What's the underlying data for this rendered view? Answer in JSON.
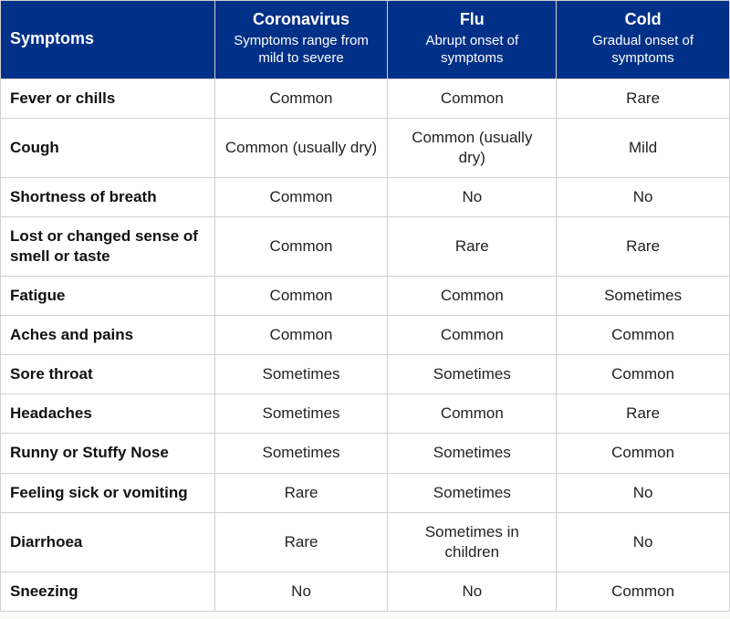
{
  "header": {
    "symptomsLabel": "Symptoms",
    "cols": [
      {
        "title": "Coronavirus",
        "sub": "Symptoms range from mild to severe"
      },
      {
        "title": "Flu",
        "sub": "Abrupt onset of symptoms"
      },
      {
        "title": "Cold",
        "sub": "Gradual onset of symptoms"
      }
    ]
  },
  "rows": [
    {
      "s": "Fever or chills",
      "cv": "Common",
      "flu": "Common",
      "cold": "Rare"
    },
    {
      "s": "Cough",
      "cv": "Common (usually dry)",
      "flu": "Common (usually dry)",
      "cold": "Mild"
    },
    {
      "s": "Shortness of breath",
      "cv": "Common",
      "flu": "No",
      "cold": "No"
    },
    {
      "s": "Lost or changed sense of smell or taste",
      "cv": "Common",
      "flu": "Rare",
      "cold": "Rare"
    },
    {
      "s": "Fatigue",
      "cv": "Common",
      "flu": "Common",
      "cold": "Sometimes"
    },
    {
      "s": "Aches and pains",
      "cv": "Common",
      "flu": "Common",
      "cold": "Common"
    },
    {
      "s": "Sore throat",
      "cv": "Sometimes",
      "flu": "Sometimes",
      "cold": "Common"
    },
    {
      "s": "Headaches",
      "cv": "Sometimes",
      "flu": "Common",
      "cold": "Rare"
    },
    {
      "s": "Runny or Stuffy Nose",
      "cv": "Sometimes",
      "flu": "Sometimes",
      "cold": "Common"
    },
    {
      "s": "Feeling sick or vomiting",
      "cv": "Rare",
      "flu": "Sometimes",
      "cold": "No"
    },
    {
      "s": "Diarrhoea",
      "cv": "Rare",
      "flu": "Sometimes in children",
      "cold": "No"
    },
    {
      "s": "Sneezing",
      "cv": "No",
      "flu": "No",
      "cold": "Common"
    }
  ],
  "style": {
    "headerBg": "#003087",
    "headerFg": "#ffffff",
    "border": "#d0d0d0",
    "bodyFg": "#222222",
    "titleFontSizePt": 14,
    "subFontSizePt": 11,
    "cellFontSizePt": 13,
    "colWidths": {
      "symptom": 235,
      "coronavirus": 190,
      "flu": 185,
      "cold": 190
    }
  }
}
